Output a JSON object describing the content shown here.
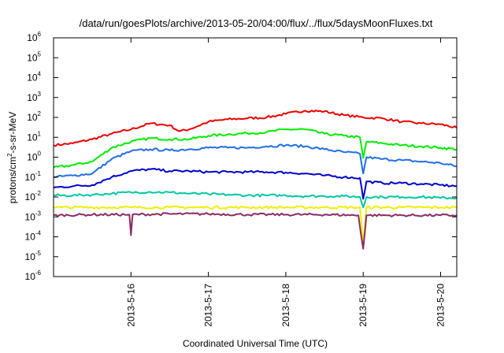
{
  "chart_data": {
    "type": "line",
    "title": "/data/run/goesPlots/archive/2013-05-20/04:00/flux/../flux/5daysMoonFluxes.txt",
    "xlabel": "Coordinated Universal Time (UTC)",
    "ylabel": {
      "base": "protons/cm",
      "sup": "2",
      "rest": "-s-sr-MeV"
    },
    "y_scale": "log",
    "ylim": [
      1e-06,
      1000000.0
    ],
    "y_ticks": [
      {
        "base": "10",
        "exp": "-6",
        "value": 1e-06
      },
      {
        "base": "10",
        "exp": "-5",
        "value": 1e-05
      },
      {
        "base": "10",
        "exp": "-4",
        "value": 0.0001
      },
      {
        "base": "10",
        "exp": "-3",
        "value": 0.001
      },
      {
        "base": "10",
        "exp": "-2",
        "value": 0.01
      },
      {
        "base": "10",
        "exp": "-1",
        "value": 0.1
      },
      {
        "base": "10",
        "exp": "0",
        "value": 1
      },
      {
        "base": "10",
        "exp": "1",
        "value": 10.0
      },
      {
        "base": "10",
        "exp": "2",
        "value": 100.0
      },
      {
        "base": "10",
        "exp": "3",
        "value": 1000.0
      },
      {
        "base": "10",
        "exp": "4",
        "value": 10000.0
      },
      {
        "base": "10",
        "exp": "5",
        "value": 100000.0
      },
      {
        "base": "10",
        "exp": "6",
        "value": 1000000.0
      }
    ],
    "xlim": [
      "2013-05-15 00:00",
      "2013-05-20 05:00"
    ],
    "x_ticks": [
      "2013-5-16",
      "2013-5-17",
      "2013-5-18",
      "2013-5-19",
      "2013-5-20"
    ],
    "x_tick_dates": [
      "2013-05-16",
      "2013-05-17",
      "2013-05-18",
      "2013-05-19",
      "2013-05-20"
    ],
    "grid": false,
    "legend": "none",
    "series": [
      {
        "color": "#ee0000",
        "x": [
          "2013-05-15 00:00",
          "2013-05-15 06:00",
          "2013-05-15 12:00",
          "2013-05-15 18:00",
          "2013-05-16 00:00",
          "2013-05-16 06:00",
          "2013-05-16 12:00",
          "2013-05-16 15:00",
          "2013-05-16 18:00",
          "2013-05-17 00:00",
          "2013-05-17 06:00",
          "2013-05-17 12:00",
          "2013-05-17 18:00",
          "2013-05-18 00:00",
          "2013-05-18 06:00",
          "2013-05-18 12:00",
          "2013-05-18 18:00",
          "2013-05-19 00:00",
          "2013-05-19 06:00",
          "2013-05-19 12:00",
          "2013-05-19 18:00",
          "2013-05-20 00:00",
          "2013-05-20 05:00"
        ],
        "y": [
          4,
          5,
          8,
          15,
          25,
          50,
          40,
          20,
          25,
          60,
          80,
          90,
          100,
          150,
          220,
          200,
          130,
          100,
          90,
          60,
          50,
          45,
          30
        ]
      },
      {
        "color": "#00ee00",
        "x": [
          "2013-05-15 00:00",
          "2013-05-15 06:00",
          "2013-05-15 12:00",
          "2013-05-15 18:00",
          "2013-05-16 00:00",
          "2013-05-16 06:00",
          "2013-05-16 12:00",
          "2013-05-16 18:00",
          "2013-05-17 00:00",
          "2013-05-17 06:00",
          "2013-05-17 12:00",
          "2013-05-17 18:00",
          "2013-05-18 00:00",
          "2013-05-18 06:00",
          "2013-05-18 12:00",
          "2013-05-18 18:00",
          "2013-05-18 23:00",
          "2013-05-19 00:00",
          "2013-05-19 01:00",
          "2013-05-19 06:00",
          "2013-05-19 12:00",
          "2013-05-19 18:00",
          "2013-05-20 00:00",
          "2013-05-20 05:00"
        ],
        "y": [
          0.3,
          0.4,
          0.6,
          3,
          6,
          9,
          8,
          8,
          12,
          14,
          16,
          18,
          25,
          25,
          15,
          12,
          10,
          0.9,
          6,
          5,
          4,
          3.5,
          3,
          2.5
        ]
      },
      {
        "color": "#1e6ee6",
        "x": [
          "2013-05-15 00:00",
          "2013-05-15 06:00",
          "2013-05-15 12:00",
          "2013-05-15 18:00",
          "2013-05-16 00:00",
          "2013-05-16 06:00",
          "2013-05-16 12:00",
          "2013-05-16 18:00",
          "2013-05-17 00:00",
          "2013-05-17 06:00",
          "2013-05-17 12:00",
          "2013-05-17 18:00",
          "2013-05-18 00:00",
          "2013-05-18 06:00",
          "2013-05-18 12:00",
          "2013-05-18 18:00",
          "2013-05-18 23:00",
          "2013-05-19 00:00",
          "2013-05-19 01:00",
          "2013-05-19 06:00",
          "2013-05-19 12:00",
          "2013-05-19 18:00",
          "2013-05-20 00:00",
          "2013-05-20 05:00"
        ],
        "y": [
          0.1,
          0.12,
          0.15,
          0.8,
          2,
          2.5,
          2.2,
          2.5,
          3,
          3,
          3,
          3.5,
          4,
          3.5,
          2.5,
          1.8,
          1.5,
          0.15,
          1,
          0.8,
          0.7,
          0.6,
          0.5,
          0.35
        ]
      },
      {
        "color": "#0000cc",
        "x": [
          "2013-05-15 00:00",
          "2013-05-15 06:00",
          "2013-05-15 12:00",
          "2013-05-15 18:00",
          "2013-05-16 00:00",
          "2013-05-16 06:00",
          "2013-05-16 12:00",
          "2013-05-16 18:00",
          "2013-05-17 00:00",
          "2013-05-17 06:00",
          "2013-05-17 12:00",
          "2013-05-17 18:00",
          "2013-05-18 00:00",
          "2013-05-18 06:00",
          "2013-05-18 12:00",
          "2013-05-18 18:00",
          "2013-05-18 23:00",
          "2013-05-19 00:00",
          "2013-05-19 01:00",
          "2013-05-19 06:00",
          "2013-05-19 12:00",
          "2013-05-19 18:00",
          "2013-05-20 00:00",
          "2013-05-20 05:00"
        ],
        "y": [
          0.03,
          0.035,
          0.04,
          0.1,
          0.2,
          0.25,
          0.2,
          0.2,
          0.18,
          0.18,
          0.18,
          0.18,
          0.17,
          0.15,
          0.12,
          0.1,
          0.09,
          0.008,
          0.06,
          0.05,
          0.05,
          0.045,
          0.04,
          0.035
        ]
      },
      {
        "color": "#00c8a0",
        "x": [
          "2013-05-15 00:00",
          "2013-05-15 06:00",
          "2013-05-15 12:00",
          "2013-05-15 18:00",
          "2013-05-16 00:00",
          "2013-05-16 06:00",
          "2013-05-16 12:00",
          "2013-05-16 18:00",
          "2013-05-17 00:00",
          "2013-05-17 06:00",
          "2013-05-17 12:00",
          "2013-05-17 18:00",
          "2013-05-18 00:00",
          "2013-05-18 06:00",
          "2013-05-18 12:00",
          "2013-05-18 18:00",
          "2013-05-18 23:00",
          "2013-05-19 00:00",
          "2013-05-19 01:00",
          "2013-05-19 06:00",
          "2013-05-19 12:00",
          "2013-05-19 18:00",
          "2013-05-20 00:00",
          "2013-05-20 05:00"
        ],
        "y": [
          0.012,
          0.012,
          0.013,
          0.015,
          0.017,
          0.018,
          0.017,
          0.015,
          0.014,
          0.013,
          0.012,
          0.012,
          0.012,
          0.011,
          0.011,
          0.011,
          0.01,
          0.003,
          0.01,
          0.01,
          0.01,
          0.01,
          0.009,
          0.009
        ]
      },
      {
        "color": "#eeee00",
        "x": [
          "2013-05-15 00:00",
          "2013-05-15 12:00",
          "2013-05-16 00:00",
          "2013-05-16 12:00",
          "2013-05-17 00:00",
          "2013-05-17 12:00",
          "2013-05-18 00:00",
          "2013-05-18 12:00",
          "2013-05-18 23:00",
          "2013-05-19 00:00",
          "2013-05-19 01:00",
          "2013-05-19 12:00",
          "2013-05-20 00:00",
          "2013-05-20 05:00"
        ],
        "y": [
          0.003,
          0.003,
          0.003,
          0.003,
          0.003,
          0.003,
          0.003,
          0.003,
          0.003,
          4e-05,
          0.003,
          0.003,
          0.003,
          0.003
        ]
      },
      {
        "color": "#8b2a63",
        "x": [
          "2013-05-15 00:00",
          "2013-05-15 12:00",
          "2013-05-15 23:30",
          "2013-05-16 00:00",
          "2013-05-16 00:30",
          "2013-05-16 12:00",
          "2013-05-17 00:00",
          "2013-05-17 12:00",
          "2013-05-18 00:00",
          "2013-05-18 12:00",
          "2013-05-18 22:30",
          "2013-05-19 00:00",
          "2013-05-19 01:00",
          "2013-05-19 12:00",
          "2013-05-20 00:00",
          "2013-05-20 05:00"
        ],
        "y": [
          0.0012,
          0.0013,
          0.0013,
          0.00012,
          0.0013,
          0.0014,
          0.0014,
          0.0013,
          0.0013,
          0.0013,
          0.0012,
          2.5e-05,
          0.0012,
          0.0012,
          0.0012,
          0.0012
        ]
      }
    ]
  }
}
